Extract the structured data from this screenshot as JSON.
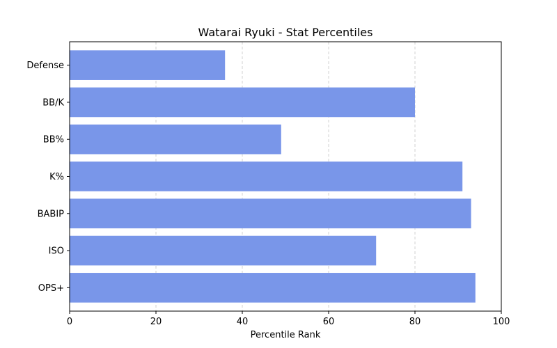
{
  "chart_data": {
    "type": "bar",
    "orientation": "horizontal",
    "title": "Watarai Ryuki - Stat Percentiles",
    "xlabel": "Percentile Rank",
    "ylabel": "",
    "categories": [
      "OPS+",
      "ISO",
      "BABIP",
      "K%",
      "BB%",
      "BB/K",
      "Defense"
    ],
    "values": [
      94,
      71,
      93,
      91,
      49,
      80,
      36
    ],
    "xlim": [
      0,
      100
    ],
    "xticks": [
      0,
      20,
      40,
      60,
      80,
      100
    ],
    "xtick_labels": [
      "0",
      "20",
      "40",
      "60",
      "80",
      "100"
    ],
    "grid": "x-dashed",
    "bar_color": "#7996e9"
  }
}
